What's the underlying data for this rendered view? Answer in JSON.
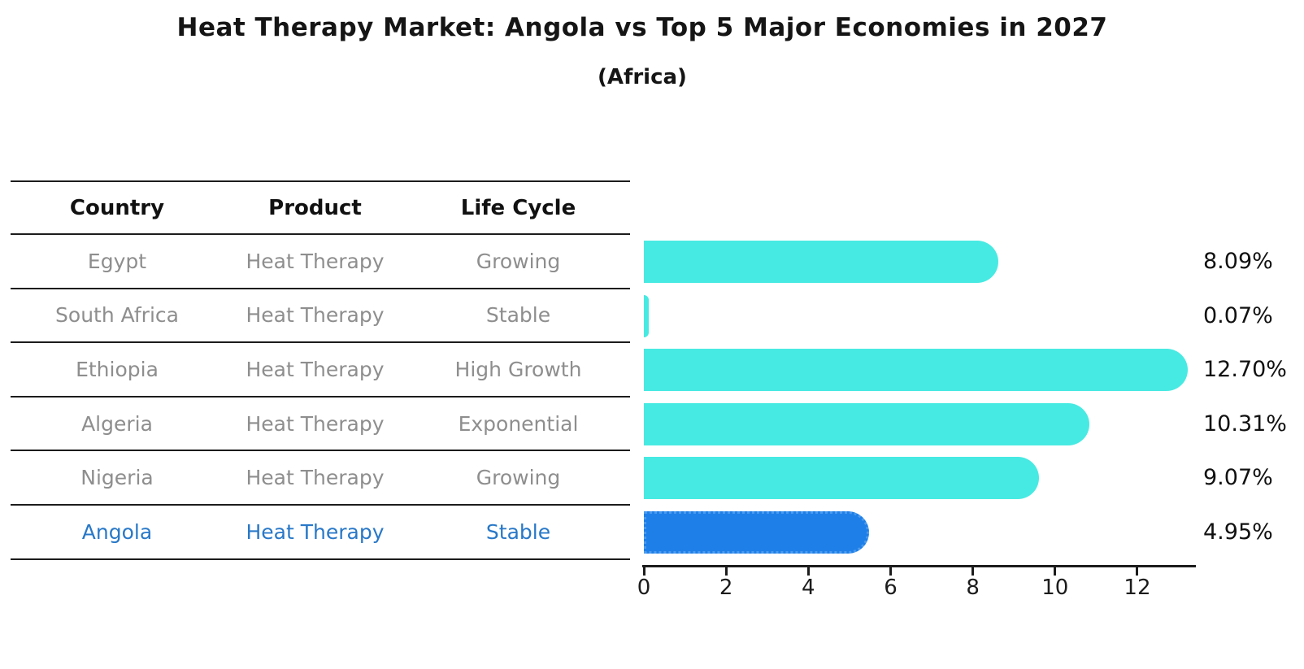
{
  "title": "Heat Therapy Market: Angola vs Top 5 Major Economies in 2027",
  "subtitle": "(Africa)",
  "table": {
    "headers": [
      "Country",
      "Product",
      "Life Cycle"
    ],
    "rows": [
      {
        "country": "Egypt",
        "product": "Heat Therapy",
        "life_cycle": "Growing",
        "highlight": false
      },
      {
        "country": "South Africa",
        "product": "Heat Therapy",
        "life_cycle": "Stable",
        "highlight": false
      },
      {
        "country": "Ethiopia",
        "product": "Heat Therapy",
        "life_cycle": "High Growth",
        "highlight": false
      },
      {
        "country": "Algeria",
        "product": "Heat Therapy",
        "life_cycle": "Exponential",
        "highlight": false
      },
      {
        "country": "Nigeria",
        "product": "Heat Therapy",
        "life_cycle": "Growing",
        "highlight": true
      }
    ],
    "highlight_row": {
      "country": "Angola",
      "product": "Heat Therapy",
      "life_cycle": "Stable"
    }
  },
  "chart_data": {
    "type": "bar",
    "orientation": "horizontal",
    "title": "Heat Therapy Market: Angola vs Top 5 Major Economies in 2027 (Africa)",
    "categories": [
      "Egypt",
      "South Africa",
      "Ethiopia",
      "Algeria",
      "Nigeria",
      "Angola"
    ],
    "values": [
      8.09,
      0.07,
      12.7,
      10.31,
      9.07,
      4.95
    ],
    "value_labels": [
      "8.09%",
      "0.07%",
      "12.70%",
      "10.31%",
      "9.07%",
      "4.95%"
    ],
    "highlight_index": 5,
    "x_ticks": [
      "0",
      "2",
      "4",
      "6",
      "8",
      "10",
      "12"
    ],
    "x_tick_values": [
      0,
      2,
      4,
      6,
      8,
      10,
      12
    ],
    "xlim": [
      0,
      13.4
    ],
    "xlabel": "",
    "ylabel": "",
    "grid": false,
    "legend": false
  },
  "colors": {
    "bar": "#47eae2",
    "highlight_bar": "#1e7fe8",
    "highlight_bar_border": "#4a9aee",
    "table_text": "#8e8e8e",
    "highlight_text": "#2878c8",
    "axis": "#1c1c1c"
  }
}
